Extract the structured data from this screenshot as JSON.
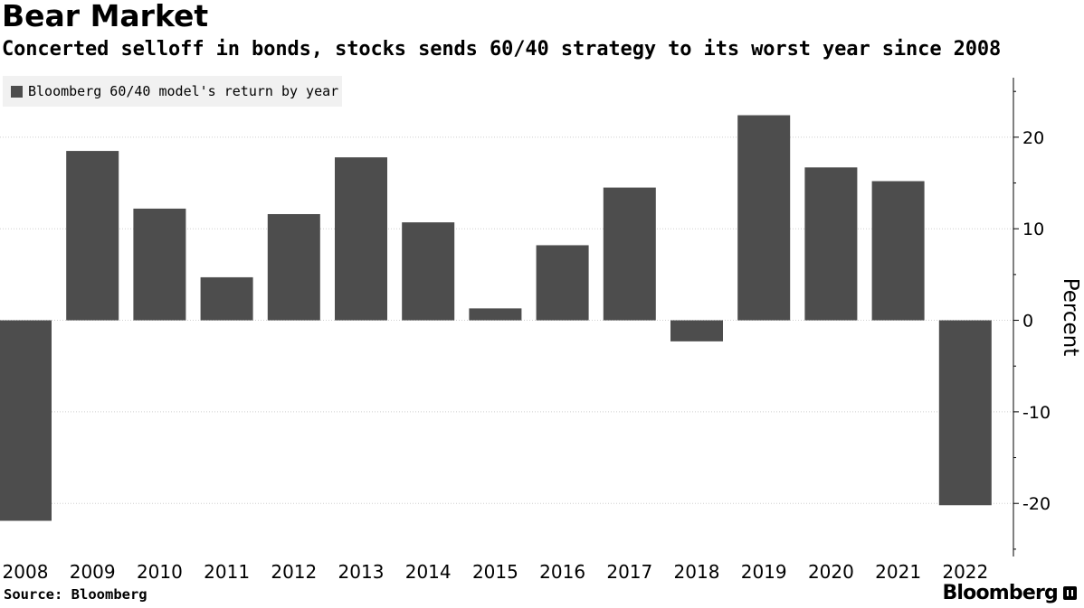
{
  "header": {
    "title": "Bear Market",
    "subtitle": "Concerted selloff in bonds, stocks sends 60/40 strategy to its worst year since 2008"
  },
  "footer": {
    "source": "Source: Bloomberg",
    "brand": "Bloomberg"
  },
  "colors": {
    "bar": "#4d4d4d",
    "grid": "#cfcfcf",
    "legend_bg": "#f1f1f1"
  },
  "chart_data": {
    "type": "bar",
    "title": "Bear Market",
    "subtitle": "Concerted selloff in bonds, stocks sends 60/40 strategy to its worst year since 2008",
    "categories": [
      "2008",
      "2009",
      "2010",
      "2011",
      "2012",
      "2013",
      "2014",
      "2015",
      "2016",
      "2017",
      "2018",
      "2019",
      "2020",
      "2021",
      "2022"
    ],
    "series": [
      {
        "name": "Bloomberg 60/40 model's return by year",
        "values": [
          -21.9,
          18.5,
          12.2,
          4.7,
          11.6,
          17.8,
          10.7,
          1.3,
          8.2,
          14.5,
          -2.3,
          22.4,
          16.7,
          15.2,
          -20.2
        ]
      }
    ],
    "xlabel": "",
    "ylabel": "Percent",
    "ylim": [
      -25.8,
      26.5
    ],
    "yticks": [
      20,
      10,
      0,
      -10,
      -20
    ],
    "ytick_labels": [
      "20",
      "10",
      "0",
      "-10",
      "-20"
    ],
    "grid": true,
    "legend_position": "top-left"
  }
}
